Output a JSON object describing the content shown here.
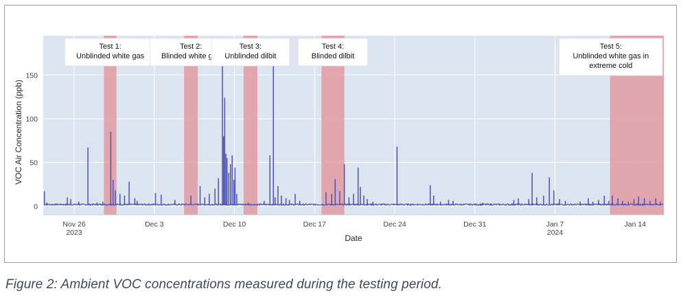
{
  "caption": "Figure 2: Ambient VOC concentrations measured during the testing period.",
  "chart_data": {
    "type": "line",
    "title": "",
    "xlabel": "Date",
    "ylabel": "VOC Air Concentration (ppb)",
    "x_range_days": [
      -2.7,
      51.5
    ],
    "ylim": [
      -10,
      195
    ],
    "y_ticks": [
      0,
      50,
      100,
      150
    ],
    "x_ticks": [
      {
        "day": 0,
        "label": "Nov 26",
        "sub": "2023"
      },
      {
        "day": 7,
        "label": "Dec 3",
        "sub": ""
      },
      {
        "day": 14,
        "label": "Dec 10",
        "sub": ""
      },
      {
        "day": 21,
        "label": "Dec 17",
        "sub": ""
      },
      {
        "day": 28,
        "label": "Dec 24",
        "sub": ""
      },
      {
        "day": 35,
        "label": "Dec 31",
        "sub": ""
      },
      {
        "day": 42,
        "label": "Jan 7",
        "sub": "2024"
      },
      {
        "day": 49,
        "label": "Jan 14",
        "sub": ""
      }
    ],
    "grid": true,
    "test_periods": [
      {
        "name": "Test 1:",
        "desc": [
          "Unblinded white gas"
        ],
        "start": 2.6,
        "end": 3.7
      },
      {
        "name": "Test 2:",
        "desc": [
          "Blinded white gas"
        ],
        "start": 9.6,
        "end": 10.8
      },
      {
        "name": "Test 3:",
        "desc": [
          "Unblinded dilbit"
        ],
        "start": 14.8,
        "end": 16.0
      },
      {
        "name": "Test 4:",
        "desc": [
          "Blinded dilbit"
        ],
        "start": 21.6,
        "end": 23.6
      },
      {
        "name": "Test 5:",
        "desc": [
          "Unblinded white gas in",
          "extreme cold"
        ],
        "start": 46.8,
        "end": 51.5
      }
    ],
    "baseline_ppb": 1,
    "series": [
      {
        "name": "VOC",
        "color": "#4f52b5",
        "peaks": [
          {
            "x": -2.6,
            "y": 17
          },
          {
            "x": -2.4,
            "y": 4
          },
          {
            "x": -0.6,
            "y": 10
          },
          {
            "x": -0.3,
            "y": 8
          },
          {
            "x": 0.4,
            "y": 5
          },
          {
            "x": 1.2,
            "y": 67
          },
          {
            "x": 2.0,
            "y": 4
          },
          {
            "x": 2.5,
            "y": 5
          },
          {
            "x": 3.2,
            "y": 85
          },
          {
            "x": 3.4,
            "y": 30
          },
          {
            "x": 3.6,
            "y": 18
          },
          {
            "x": 4.0,
            "y": 14
          },
          {
            "x": 4.4,
            "y": 12
          },
          {
            "x": 4.8,
            "y": 28
          },
          {
            "x": 5.3,
            "y": 9
          },
          {
            "x": 5.5,
            "y": 6
          },
          {
            "x": 7.1,
            "y": 15
          },
          {
            "x": 7.6,
            "y": 13
          },
          {
            "x": 8.8,
            "y": 7
          },
          {
            "x": 10.2,
            "y": 12
          },
          {
            "x": 11.0,
            "y": 23
          },
          {
            "x": 11.4,
            "y": 10
          },
          {
            "x": 11.8,
            "y": 14
          },
          {
            "x": 12.3,
            "y": 20
          },
          {
            "x": 12.6,
            "y": 32
          },
          {
            "x": 12.95,
            "y": 190
          },
          {
            "x": 13.05,
            "y": 80
          },
          {
            "x": 13.15,
            "y": 124
          },
          {
            "x": 13.25,
            "y": 60
          },
          {
            "x": 13.35,
            "y": 55
          },
          {
            "x": 13.5,
            "y": 38
          },
          {
            "x": 13.65,
            "y": 48
          },
          {
            "x": 13.8,
            "y": 58
          },
          {
            "x": 13.95,
            "y": 30
          },
          {
            "x": 14.05,
            "y": 44
          },
          {
            "x": 14.2,
            "y": 14
          },
          {
            "x": 15.2,
            "y": 4
          },
          {
            "x": 16.6,
            "y": 6
          },
          {
            "x": 17.1,
            "y": 58
          },
          {
            "x": 17.4,
            "y": 190
          },
          {
            "x": 17.55,
            "y": 10
          },
          {
            "x": 17.8,
            "y": 23
          },
          {
            "x": 18.1,
            "y": 12
          },
          {
            "x": 18.5,
            "y": 9
          },
          {
            "x": 18.8,
            "y": 7
          },
          {
            "x": 19.3,
            "y": 14
          },
          {
            "x": 19.7,
            "y": 6
          },
          {
            "x": 22.0,
            "y": 16
          },
          {
            "x": 22.5,
            "y": 14
          },
          {
            "x": 22.8,
            "y": 31
          },
          {
            "x": 23.2,
            "y": 17
          },
          {
            "x": 23.6,
            "y": 48
          },
          {
            "x": 24.0,
            "y": 10
          },
          {
            "x": 24.4,
            "y": 14
          },
          {
            "x": 24.8,
            "y": 44
          },
          {
            "x": 25.0,
            "y": 22
          },
          {
            "x": 25.3,
            "y": 12
          },
          {
            "x": 25.6,
            "y": 8
          },
          {
            "x": 26.1,
            "y": 5
          },
          {
            "x": 28.2,
            "y": 68
          },
          {
            "x": 31.1,
            "y": 24
          },
          {
            "x": 31.4,
            "y": 12
          },
          {
            "x": 32.0,
            "y": 5
          },
          {
            "x": 32.7,
            "y": 7
          },
          {
            "x": 33.1,
            "y": 6
          },
          {
            "x": 35.7,
            "y": 4
          },
          {
            "x": 36.4,
            "y": 3
          },
          {
            "x": 38.4,
            "y": 7
          },
          {
            "x": 38.8,
            "y": 9
          },
          {
            "x": 39.7,
            "y": 8
          },
          {
            "x": 40.0,
            "y": 38
          },
          {
            "x": 40.4,
            "y": 10
          },
          {
            "x": 41.0,
            "y": 12
          },
          {
            "x": 41.5,
            "y": 33
          },
          {
            "x": 41.9,
            "y": 18
          },
          {
            "x": 42.4,
            "y": 8
          },
          {
            "x": 42.9,
            "y": 6
          },
          {
            "x": 44.2,
            "y": 5
          },
          {
            "x": 44.9,
            "y": 9
          },
          {
            "x": 45.3,
            "y": 5
          },
          {
            "x": 45.8,
            "y": 7
          },
          {
            "x": 46.3,
            "y": 12
          },
          {
            "x": 46.7,
            "y": 6
          },
          {
            "x": 47.0,
            "y": 12
          },
          {
            "x": 47.5,
            "y": 9
          },
          {
            "x": 47.9,
            "y": 6
          },
          {
            "x": 48.4,
            "y": 5
          },
          {
            "x": 48.9,
            "y": 8
          },
          {
            "x": 49.3,
            "y": 11
          },
          {
            "x": 49.8,
            "y": 9
          },
          {
            "x": 50.3,
            "y": 6
          },
          {
            "x": 50.8,
            "y": 9
          },
          {
            "x": 51.2,
            "y": 5
          }
        ]
      }
    ]
  },
  "colors": {
    "plot_bg": "#dbe4ef",
    "grid": "#ffffff",
    "band": "#e29aa2",
    "line": "#4f52b5"
  }
}
